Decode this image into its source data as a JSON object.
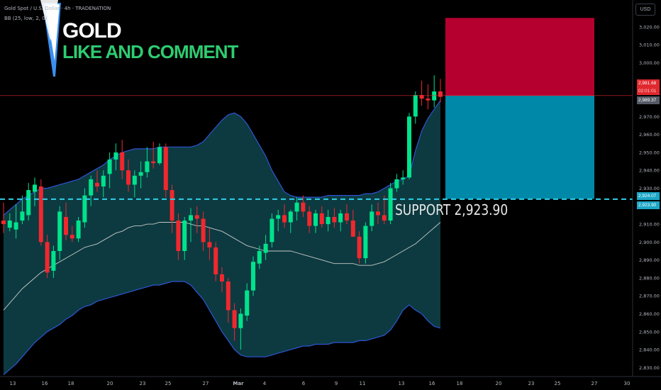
{
  "legend": {
    "symbol_line": "Gold Spot / U.S. Dollar · 4h · TRADENATION",
    "indicator_line": "BB (25, low, 2, 0)"
  },
  "headline": {
    "title": "GOLD",
    "subtitle": "LIKE AND COMMENT",
    "title_color": "#ffffff",
    "subtitle_color": "#2ecc71"
  },
  "price_axis": {
    "unit_label": "USD",
    "current_price_label": "2,981.68",
    "countdown_label": "02:01:01",
    "secondary_price_label": "2,989.37",
    "support_price_label": "2,924.07",
    "support_level_label": "2,923.90"
  },
  "support_annotation": "SUPPORT  2,923.90",
  "colors": {
    "bull": "#00e38c",
    "bear": "#f0282e",
    "band_fill": "#0c3a40",
    "band_line": "#2f55d4",
    "basis_line": "#c8c8c8",
    "support_line": "#30d0e8",
    "stop_zone": "#b5002f",
    "target_zone": "#0088a8",
    "current_price_tag": "#e0282e",
    "support_tag": "#1aa6c6"
  },
  "chart_data": {
    "type": "candlestick",
    "ylim": [
      2825,
      3035
    ],
    "y_ticks": [
      2830,
      2840,
      2850,
      2860,
      2870,
      2880,
      2890,
      2900,
      2910,
      2920,
      2930,
      2940,
      2950,
      2960,
      2970,
      2980,
      2990,
      3000,
      3010,
      3020
    ],
    "y_tick_labels": [
      "2,830.00",
      "2,840.00",
      "2,850.00",
      "2,860.00",
      "2,870.00",
      "2,880.00",
      "2,890.00",
      "2,900.00",
      "2,910.00",
      "2,920.00",
      "2,930.00",
      "2,940.00",
      "2,950.00",
      "2,960.00",
      "2,970.00",
      "2,980.00",
      "2,990.00",
      "3,000.00",
      "3,010.00",
      "3,020.00"
    ],
    "x_tick_labels": [
      "13",
      "16",
      "18",
      "20",
      "23",
      "25",
      "27",
      "Mar",
      "4",
      "6",
      "9",
      "11",
      "13",
      "16",
      "18",
      "20",
      "23",
      "25",
      "27",
      "30"
    ],
    "support_level": 2923.9,
    "current_price": 2981.68,
    "trade_box": {
      "stop_top": 3025,
      "entry": 2981.68,
      "target": 2924.07
    },
    "candles": [
      [
        2912,
        2922,
        2905,
        2910
      ],
      [
        2908,
        2916,
        2906,
        2912
      ],
      [
        2907,
        2921,
        2902,
        2911
      ],
      [
        2912,
        2926,
        2910,
        2917
      ],
      [
        2915,
        2933,
        2912,
        2929
      ],
      [
        2928,
        2936,
        2920,
        2932
      ],
      [
        2931,
        2935,
        2898,
        2900
      ],
      [
        2900,
        2904,
        2880,
        2883
      ],
      [
        2884,
        2898,
        2880,
        2895
      ],
      [
        2895,
        2920,
        2890,
        2917
      ],
      [
        2914,
        2922,
        2901,
        2904
      ],
      [
        2904,
        2909,
        2900,
        2902
      ],
      [
        2902,
        2914,
        2900,
        2912
      ],
      [
        2911,
        2930,
        2908,
        2926
      ],
      [
        2926,
        2937,
        2920,
        2935
      ],
      [
        2933,
        2940,
        2928,
        2931
      ],
      [
        2931,
        2940,
        2925,
        2937
      ],
      [
        2938,
        2950,
        2930,
        2946
      ],
      [
        2946,
        2955,
        2940,
        2950
      ],
      [
        2950,
        2957,
        2935,
        2940
      ],
      [
        2940,
        2946,
        2928,
        2932
      ],
      [
        2932,
        2940,
        2925,
        2937
      ],
      [
        2937,
        2945,
        2930,
        2939
      ],
      [
        2939,
        2953,
        2936,
        2945
      ],
      [
        2945,
        2956,
        2941,
        2944
      ],
      [
        2944,
        2955,
        2943,
        2953
      ],
      [
        2953,
        2955,
        2925,
        2929
      ],
      [
        2929,
        2932,
        2905,
        2912
      ],
      [
        2912,
        2916,
        2890,
        2895
      ],
      [
        2895,
        2914,
        2890,
        2912
      ],
      [
        2912,
        2919,
        2900,
        2915
      ],
      [
        2915,
        2920,
        2905,
        2913
      ],
      [
        2913,
        2917,
        2895,
        2900
      ],
      [
        2900,
        2908,
        2890,
        2897
      ],
      [
        2897,
        2900,
        2878,
        2882
      ],
      [
        2882,
        2886,
        2872,
        2878
      ],
      [
        2878,
        2880,
        2855,
        2862
      ],
      [
        2862,
        2866,
        2845,
        2852
      ],
      [
        2852,
        2863,
        2840,
        2860
      ],
      [
        2859,
        2877,
        2856,
        2873
      ],
      [
        2873,
        2892,
        2870,
        2889
      ],
      [
        2888,
        2898,
        2885,
        2895
      ],
      [
        2894,
        2904,
        2890,
        2899
      ],
      [
        2900,
        2916,
        2897,
        2913
      ],
      [
        2913,
        2918,
        2906,
        2915
      ],
      [
        2915,
        2921,
        2908,
        2911
      ],
      [
        2911,
        2918,
        2905,
        2917
      ],
      [
        2917,
        2925,
        2912,
        2922
      ],
      [
        2922,
        2926,
        2914,
        2917
      ],
      [
        2917,
        2920,
        2905,
        2909
      ],
      [
        2909,
        2918,
        2905,
        2916
      ],
      [
        2916,
        2920,
        2908,
        2910
      ],
      [
        2910,
        2918,
        2906,
        2914
      ],
      [
        2914,
        2919,
        2908,
        2911
      ],
      [
        2911,
        2918,
        2906,
        2916
      ],
      [
        2916,
        2921,
        2910,
        2912
      ],
      [
        2912,
        2918,
        2903,
        2903
      ],
      [
        2903,
        2906,
        2888,
        2891
      ],
      [
        2891,
        2911,
        2888,
        2909
      ],
      [
        2909,
        2921,
        2906,
        2917
      ],
      [
        2917,
        2922,
        2910,
        2915
      ],
      [
        2915,
        2926,
        2910,
        2912
      ],
      [
        2912,
        2933,
        2910,
        2930
      ],
      [
        2930,
        2938,
        2928,
        2935
      ],
      [
        2935,
        2940,
        2932,
        2936
      ],
      [
        2936,
        2972,
        2935,
        2970
      ],
      [
        2970,
        2984,
        2966,
        2982
      ],
      [
        2982,
        2990,
        2976,
        2980
      ],
      [
        2980,
        2988,
        2974,
        2979
      ],
      [
        2979,
        2993,
        2975,
        2984
      ],
      [
        2984,
        2991,
        2978,
        2981
      ]
    ],
    "series": [
      {
        "name": "BB upper",
        "values": [
          2915,
          2918,
          2921,
          2924,
          2926,
          2928,
          2930,
          2930,
          2931,
          2932,
          2933,
          2934,
          2935,
          2937,
          2939,
          2941,
          2943,
          2946,
          2948,
          2950,
          2951,
          2952,
          2952,
          2952,
          2952,
          2953,
          2953,
          2953,
          2953,
          2953,
          2953,
          2954,
          2956,
          2960,
          2964,
          2968,
          2971,
          2972,
          2970,
          2966,
          2960,
          2954,
          2948,
          2940,
          2934,
          2928,
          2926,
          2925,
          2925,
          2925,
          2925,
          2925,
          2926,
          2926,
          2926,
          2926,
          2926,
          2926,
          2927,
          2927,
          2928,
          2930,
          2932,
          2934,
          2935,
          2937,
          2951,
          2962,
          2969,
          2974,
          2979
        ]
      },
      {
        "name": "BB basis",
        "values": [
          2862,
          2866,
          2870,
          2874,
          2877,
          2880,
          2883,
          2885,
          2887,
          2889,
          2891,
          2893,
          2895,
          2897,
          2898,
          2899,
          2901,
          2903,
          2905,
          2906,
          2908,
          2909,
          2909,
          2910,
          2910,
          2911,
          2911,
          2911,
          2911,
          2911,
          2910,
          2909,
          2909,
          2908,
          2907,
          2906,
          2904,
          2902,
          2900,
          2898,
          2897,
          2896,
          2895,
          2895,
          2895,
          2895,
          2895,
          2894,
          2893,
          2892,
          2891,
          2890,
          2889,
          2888,
          2888,
          2888,
          2888,
          2887,
          2887,
          2887,
          2888,
          2889,
          2891,
          2893,
          2895,
          2897,
          2899,
          2902,
          2905,
          2908,
          2911
        ]
      },
      {
        "name": "BB lower",
        "values": [
          2826,
          2829,
          2832,
          2836,
          2840,
          2844,
          2847,
          2850,
          2852,
          2854,
          2857,
          2859,
          2862,
          2864,
          2865,
          2867,
          2868,
          2869,
          2870,
          2871,
          2872,
          2873,
          2874,
          2875,
          2876,
          2876,
          2877,
          2878,
          2878,
          2878,
          2876,
          2872,
          2868,
          2862,
          2856,
          2850,
          2845,
          2840,
          2837,
          2836,
          2836,
          2836,
          2836,
          2837,
          2838,
          2839,
          2840,
          2841,
          2842,
          2842,
          2843,
          2843,
          2843,
          2844,
          2844,
          2844,
          2844,
          2845,
          2845,
          2846,
          2847,
          2848,
          2851,
          2856,
          2862,
          2865,
          2862,
          2860,
          2856,
          2853,
          2852
        ]
      }
    ]
  }
}
